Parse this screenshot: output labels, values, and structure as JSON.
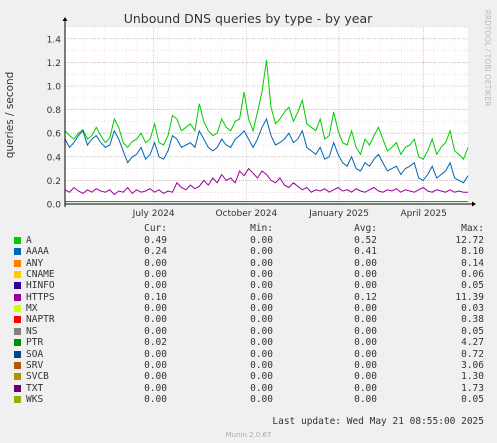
{
  "chart_data": {
    "type": "line",
    "title": "Unbound DNS queries by type - by year",
    "ylabel": "queries / second",
    "watermark": "RRDTOOL / TOBI OETIKER",
    "ylim": [
      0,
      1.5
    ],
    "yticks": [
      "0.0",
      "0.2",
      "0.4",
      "0.6",
      "0.8",
      "1.0",
      "1.2",
      "1.4"
    ],
    "xticks": [
      "July 2024",
      "October 2024",
      "January 2025",
      "April 2025"
    ],
    "grid": true,
    "series": [
      {
        "name": "A",
        "color": "#00cc00",
        "values": [
          0.62,
          0.58,
          0.55,
          0.6,
          0.63,
          0.55,
          0.58,
          0.65,
          0.58,
          0.52,
          0.56,
          0.72,
          0.65,
          0.52,
          0.48,
          0.53,
          0.55,
          0.6,
          0.52,
          0.55,
          0.68,
          0.52,
          0.5,
          0.58,
          0.75,
          0.72,
          0.62,
          0.65,
          0.68,
          0.62,
          0.85,
          0.7,
          0.62,
          0.58,
          0.6,
          0.72,
          0.65,
          0.62,
          0.7,
          0.72,
          0.95,
          0.72,
          0.62,
          0.78,
          0.95,
          1.22,
          0.82,
          0.68,
          0.72,
          0.78,
          0.82,
          0.7,
          0.78,
          0.88,
          0.68,
          0.65,
          0.62,
          0.72,
          0.55,
          0.58,
          0.78,
          0.62,
          0.52,
          0.5,
          0.62,
          0.48,
          0.42,
          0.55,
          0.5,
          0.58,
          0.65,
          0.55,
          0.45,
          0.48,
          0.52,
          0.42,
          0.48,
          0.5,
          0.55,
          0.4,
          0.38,
          0.45,
          0.55,
          0.42,
          0.48,
          0.52,
          0.62,
          0.45,
          0.42,
          0.38,
          0.48
        ]
      },
      {
        "name": "AAAA",
        "color": "#0066b3",
        "values": [
          0.55,
          0.48,
          0.52,
          0.58,
          0.62,
          0.5,
          0.55,
          0.58,
          0.52,
          0.48,
          0.5,
          0.62,
          0.55,
          0.45,
          0.35,
          0.4,
          0.42,
          0.48,
          0.38,
          0.42,
          0.52,
          0.4,
          0.38,
          0.45,
          0.58,
          0.55,
          0.48,
          0.5,
          0.52,
          0.48,
          0.62,
          0.55,
          0.48,
          0.45,
          0.48,
          0.55,
          0.5,
          0.48,
          0.55,
          0.58,
          0.62,
          0.55,
          0.48,
          0.55,
          0.65,
          0.72,
          0.58,
          0.5,
          0.52,
          0.55,
          0.6,
          0.52,
          0.55,
          0.62,
          0.48,
          0.45,
          0.42,
          0.48,
          0.38,
          0.4,
          0.52,
          0.42,
          0.35,
          0.32,
          0.4,
          0.3,
          0.28,
          0.35,
          0.32,
          0.38,
          0.42,
          0.35,
          0.28,
          0.3,
          0.32,
          0.25,
          0.3,
          0.32,
          0.35,
          0.22,
          0.2,
          0.25,
          0.32,
          0.22,
          0.25,
          0.28,
          0.35,
          0.22,
          0.2,
          0.18,
          0.24
        ]
      },
      {
        "name": "ANY",
        "color": "#ff8000",
        "values": [
          0.0
        ]
      },
      {
        "name": "CNAME",
        "color": "#ffcc00",
        "values": [
          0.0
        ]
      },
      {
        "name": "HINFO",
        "color": "#330099",
        "values": [
          0.0
        ]
      },
      {
        "name": "HTTPS",
        "color": "#990099",
        "values": [
          0.12,
          0.1,
          0.14,
          0.11,
          0.09,
          0.12,
          0.1,
          0.13,
          0.11,
          0.1,
          0.12,
          0.08,
          0.11,
          0.1,
          0.14,
          0.09,
          0.12,
          0.1,
          0.11,
          0.13,
          0.1,
          0.12,
          0.09,
          0.11,
          0.1,
          0.18,
          0.14,
          0.12,
          0.16,
          0.13,
          0.15,
          0.2,
          0.16,
          0.22,
          0.18,
          0.25,
          0.2,
          0.22,
          0.18,
          0.28,
          0.24,
          0.3,
          0.26,
          0.22,
          0.28,
          0.25,
          0.2,
          0.18,
          0.22,
          0.16,
          0.14,
          0.18,
          0.15,
          0.12,
          0.14,
          0.1,
          0.12,
          0.11,
          0.13,
          0.1,
          0.12,
          0.14,
          0.11,
          0.12,
          0.1,
          0.13,
          0.11,
          0.1,
          0.12,
          0.14,
          0.11,
          0.1,
          0.12,
          0.11,
          0.13,
          0.1,
          0.12,
          0.11,
          0.1,
          0.12,
          0.14,
          0.11,
          0.1,
          0.12,
          0.11,
          0.1,
          0.12,
          0.1,
          0.11,
          0.1,
          0.1
        ]
      },
      {
        "name": "MX",
        "color": "#ccff00",
        "values": [
          0.0
        ]
      },
      {
        "name": "NAPTR",
        "color": "#ff0000",
        "values": [
          0.0
        ]
      },
      {
        "name": "NS",
        "color": "#808080",
        "values": [
          0.0
        ]
      },
      {
        "name": "PTR",
        "color": "#008f00",
        "values": [
          0.02
        ]
      },
      {
        "name": "SOA",
        "color": "#00487d",
        "values": [
          0.0
        ]
      },
      {
        "name": "SRV",
        "color": "#b35a00",
        "values": [
          0.0
        ]
      },
      {
        "name": "SVCB",
        "color": "#b38f00",
        "values": [
          0.0
        ]
      },
      {
        "name": "TXT",
        "color": "#6b006b",
        "values": [
          0.0
        ]
      },
      {
        "name": "WKS",
        "color": "#8fb300",
        "values": [
          0.0
        ]
      }
    ]
  },
  "legend": {
    "headers": {
      "cur": "Cur:",
      "min": "Min:",
      "avg": "Avg:",
      "max": "Max:"
    },
    "rows": [
      {
        "name": "A",
        "cur": "0.49",
        "min": "0.00",
        "avg": "0.52",
        "max": "12.72"
      },
      {
        "name": "AAAA",
        "cur": "0.24",
        "min": "0.00",
        "avg": "0.41",
        "max": "8.10"
      },
      {
        "name": "ANY",
        "cur": "0.00",
        "min": "0.00",
        "avg": "0.00",
        "max": "0.14"
      },
      {
        "name": "CNAME",
        "cur": "0.00",
        "min": "0.00",
        "avg": "0.00",
        "max": "0.06"
      },
      {
        "name": "HINFO",
        "cur": "0.00",
        "min": "0.00",
        "avg": "0.00",
        "max": "0.05"
      },
      {
        "name": "HTTPS",
        "cur": "0.10",
        "min": "0.00",
        "avg": "0.12",
        "max": "11.39"
      },
      {
        "name": "MX",
        "cur": "0.00",
        "min": "0.00",
        "avg": "0.00",
        "max": "0.03"
      },
      {
        "name": "NAPTR",
        "cur": "0.00",
        "min": "0.00",
        "avg": "0.00",
        "max": "0.38"
      },
      {
        "name": "NS",
        "cur": "0.00",
        "min": "0.00",
        "avg": "0.00",
        "max": "0.05"
      },
      {
        "name": "PTR",
        "cur": "0.02",
        "min": "0.00",
        "avg": "0.00",
        "max": "4.27"
      },
      {
        "name": "SOA",
        "cur": "0.00",
        "min": "0.00",
        "avg": "0.00",
        "max": "0.72"
      },
      {
        "name": "SRV",
        "cur": "0.00",
        "min": "0.00",
        "avg": "0.00",
        "max": "3.06"
      },
      {
        "name": "SVCB",
        "cur": "0.00",
        "min": "0.00",
        "avg": "0.00",
        "max": "1.30"
      },
      {
        "name": "TXT",
        "cur": "0.00",
        "min": "0.00",
        "avg": "0.00",
        "max": "1.73"
      },
      {
        "name": "WKS",
        "cur": "0.00",
        "min": "0.00",
        "avg": "0.00",
        "max": "0.05"
      }
    ]
  },
  "footer": {
    "last_update": "Last update:  Wed May 21 08:55:00 2025",
    "version": "Munin 2.0.67"
  }
}
